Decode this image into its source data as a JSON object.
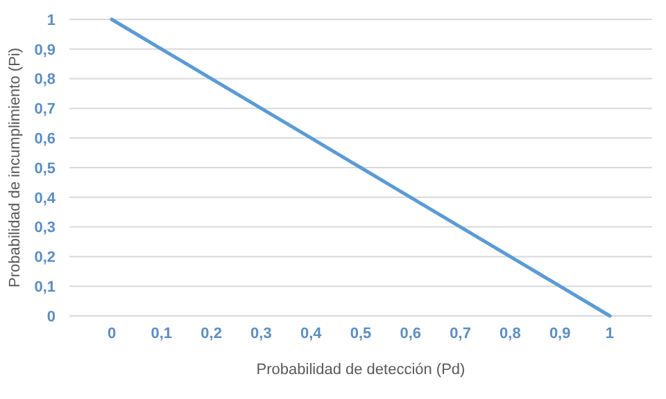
{
  "chart_data": {
    "type": "line",
    "xlabel": "Probabilidad de detección (Pd)",
    "ylabel": "Probabilidad de incumplimiento (Pi)",
    "categories": [
      "0",
      "0,1",
      "0,2",
      "0,3",
      "0,4",
      "0,5",
      "0,6",
      "0,7",
      "0,8",
      "0,9",
      "1"
    ],
    "series": [
      {
        "color": "#5b9bd5",
        "values": [
          1,
          0.9,
          0.8,
          0.7,
          0.6,
          0.5,
          0.4,
          0.3,
          0.2,
          0.1,
          0
        ]
      }
    ],
    "ylim": [
      0,
      1
    ],
    "yticks": [
      0,
      {
        "value": 0.1,
        "label": "0,1"
      },
      {
        "value": 0.2,
        "label": "0,2"
      },
      {
        "value": 0.3,
        "label": "0,3"
      },
      {
        "value": 0.4,
        "label": "0,4"
      },
      {
        "value": 0.5,
        "label": "0,5"
      },
      {
        "value": 0.6,
        "label": "0,6"
      },
      {
        "value": 0.7,
        "label": "0,7"
      },
      {
        "value": 0.8,
        "label": "0,8"
      },
      {
        "value": 0.9,
        "label": "0,9"
      },
      1
    ],
    "grid": "y",
    "marker": "none",
    "line_style": "solid"
  }
}
